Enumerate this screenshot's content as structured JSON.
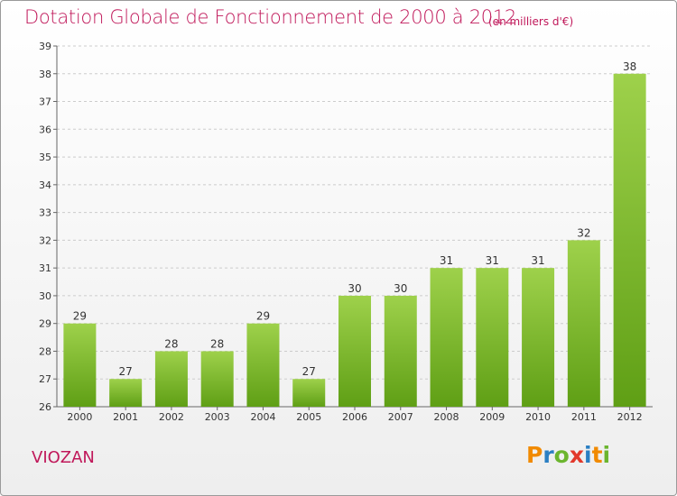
{
  "title": "Dotation Globale de Fonctionnement de 2000 à 2012",
  "subtitle": "(en milliers d'€)",
  "commune": "VIOZAN",
  "brand": {
    "letters": [
      "P",
      "r",
      "o",
      "x",
      "i",
      "t",
      "i"
    ],
    "colors": [
      "#f18a00",
      "#2b7fc3",
      "#6bb52e",
      "#e2382b",
      "#2b7fc3",
      "#f18a00",
      "#6bb52e"
    ]
  },
  "colors": {
    "title": "#c0185a",
    "bar_light": "#9ed14b",
    "bar_dark": "#5f9f15",
    "grid": "#cccccc"
  },
  "chart_data": {
    "type": "bar",
    "categories": [
      "2000",
      "2001",
      "2002",
      "2003",
      "2004",
      "2005",
      "2006",
      "2007",
      "2008",
      "2009",
      "2010",
      "2011",
      "2012"
    ],
    "values": [
      29,
      27,
      28,
      28,
      29,
      27,
      30,
      30,
      31,
      31,
      31,
      32,
      38
    ],
    "ylim": [
      26,
      39
    ],
    "yticks": [
      26,
      27,
      28,
      29,
      30,
      31,
      32,
      33,
      34,
      35,
      36,
      37,
      38,
      39
    ],
    "grid": true,
    "data_labels": true
  }
}
